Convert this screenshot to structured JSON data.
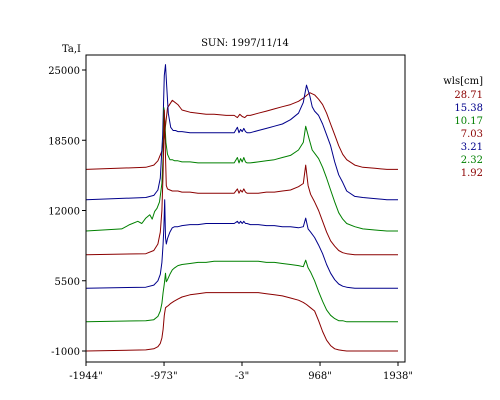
{
  "chart_data": {
    "type": "line",
    "title": "SUN: 1997/11/14",
    "ylabel": "Ta,I",
    "xlabel": "",
    "xlim": [
      -1944,
      1938
    ],
    "ylim": [
      -1000,
      29000
    ],
    "x_ticks": [
      {
        "value": -1944,
        "label": "-1944\""
      },
      {
        "value": -973,
        "label": "-973\""
      },
      {
        "value": -3,
        "label": "-3\""
      },
      {
        "value": 968,
        "label": "968\""
      },
      {
        "value": 1938,
        "label": "1938\""
      }
    ],
    "y_ticks": [
      {
        "value": 25000,
        "label": "25000"
      },
      {
        "value": 18500,
        "label": "18500"
      },
      {
        "value": 12000,
        "label": "12000"
      },
      {
        "value": 5500,
        "label": "5500"
      },
      {
        "value": -1000,
        "label": "-1000"
      }
    ],
    "legend_title": "wls[cm]",
    "legend_position": "right",
    "grid": false,
    "series": [
      {
        "name": "28.71",
        "color": "#8b0000",
        "x": [
          -1944,
          -1200,
          -1100,
          -1050,
          -1000,
          -960,
          -930,
          -870,
          -800,
          -750,
          -650,
          -550,
          -450,
          -350,
          -200,
          -100,
          -60,
          -30,
          0,
          30,
          60,
          100,
          200,
          300,
          400,
          500,
          600,
          700,
          760,
          840,
          900,
          950,
          1000,
          1050,
          1100,
          1150,
          1200,
          1250,
          1300,
          1400,
          1500,
          1650,
          1800,
          1938
        ],
        "y": [
          15800,
          16000,
          16200,
          16600,
          17500,
          19500,
          21500,
          22200,
          21800,
          21300,
          21100,
          21000,
          20900,
          20900,
          20800,
          20800,
          20600,
          20900,
          20700,
          20600,
          20800,
          20800,
          21000,
          21200,
          21400,
          21600,
          21800,
          22100,
          22400,
          22900,
          22700,
          22300,
          21800,
          21000,
          20000,
          19000,
          18000,
          17200,
          16700,
          16200,
          16000,
          15900,
          15800,
          15800
        ]
      },
      {
        "name": "15.38",
        "color": "#00008b",
        "x": [
          -1944,
          -1200,
          -1100,
          -1050,
          -1020,
          -990,
          -970,
          -955,
          -940,
          -920,
          -890,
          -860,
          -830,
          -800,
          -750,
          -650,
          -550,
          -450,
          -350,
          -200,
          -100,
          -60,
          -40,
          -20,
          0,
          20,
          40,
          60,
          100,
          200,
          300,
          400,
          500,
          600,
          700,
          760,
          800,
          840,
          870,
          900,
          950,
          1000,
          1050,
          1100,
          1150,
          1200,
          1250,
          1300,
          1400,
          1500,
          1650,
          1800,
          1938
        ],
        "y": [
          13000,
          13200,
          13400,
          13900,
          15000,
          19000,
          24500,
          25500,
          23500,
          21000,
          19700,
          19400,
          19400,
          19300,
          19300,
          19200,
          19200,
          19200,
          19200,
          19200,
          19200,
          19700,
          19200,
          19500,
          19300,
          19600,
          19300,
          19200,
          19200,
          19400,
          19600,
          19800,
          20000,
          20400,
          21000,
          22000,
          23600,
          22600,
          21600,
          21200,
          20800,
          20000,
          19000,
          18000,
          16500,
          15300,
          14600,
          13800,
          13300,
          13200,
          13100,
          13000,
          13000
        ]
      },
      {
        "name": "10.17",
        "color": "#008000",
        "x": [
          -1944,
          -1500,
          -1400,
          -1300,
          -1250,
          -1200,
          -1150,
          -1120,
          -1090,
          -1060,
          -1030,
          -1000,
          -985,
          -975,
          -965,
          -950,
          -930,
          -900,
          -870,
          -840,
          -800,
          -750,
          -650,
          -550,
          -450,
          -350,
          -200,
          -100,
          -60,
          -40,
          -20,
          0,
          20,
          40,
          60,
          100,
          200,
          300,
          400,
          500,
          600,
          700,
          760,
          790,
          830,
          870,
          900,
          950,
          1000,
          1050,
          1100,
          1150,
          1200,
          1250,
          1300,
          1400,
          1500,
          1650,
          1800,
          1938
        ],
        "y": [
          10100,
          10300,
          10700,
          11000,
          10800,
          11300,
          11600,
          11200,
          11900,
          12200,
          12800,
          14500,
          17000,
          21500,
          20500,
          18300,
          17200,
          16700,
          16700,
          16600,
          16600,
          16500,
          16500,
          16400,
          16400,
          16400,
          16400,
          16400,
          16900,
          16400,
          16800,
          16500,
          16900,
          16500,
          16400,
          16400,
          16500,
          16600,
          16700,
          16900,
          17100,
          17600,
          18300,
          19800,
          18700,
          17600,
          17300,
          16800,
          16000,
          15000,
          13900,
          12800,
          11800,
          11200,
          10800,
          10500,
          10300,
          10200,
          10100,
          10100
        ]
      },
      {
        "name": "7.03",
        "color": "#8b0000",
        "x": [
          -1944,
          -1200,
          -1100,
          -1050,
          -1020,
          -1000,
          -985,
          -970,
          -955,
          -945,
          -930,
          -900,
          -870,
          -840,
          -800,
          -750,
          -650,
          -550,
          -450,
          -350,
          -200,
          -100,
          -60,
          -40,
          -20,
          0,
          20,
          40,
          60,
          100,
          200,
          300,
          400,
          500,
          600,
          700,
          760,
          790,
          820,
          850,
          900,
          950,
          1000,
          1050,
          1100,
          1150,
          1200,
          1250,
          1300,
          1400,
          1500,
          1650,
          1800,
          1938
        ],
        "y": [
          7900,
          8000,
          8300,
          8900,
          10000,
          12000,
          15500,
          21300,
          17000,
          14300,
          14000,
          13900,
          13800,
          13800,
          13800,
          13700,
          13700,
          13600,
          13600,
          13600,
          13600,
          13600,
          14000,
          13600,
          13900,
          13700,
          14000,
          13700,
          13600,
          13600,
          13600,
          13700,
          13700,
          13800,
          13900,
          14200,
          14500,
          16200,
          14300,
          13500,
          12800,
          12000,
          11000,
          10000,
          9200,
          8700,
          8300,
          8100,
          8000,
          7900,
          7900,
          7900,
          7900,
          7900
        ]
      },
      {
        "name": "3.21",
        "color": "#00008b",
        "x": [
          -1944,
          -1200,
          -1100,
          -1050,
          -1020,
          -1000,
          -985,
          -975,
          -965,
          -955,
          -945,
          -930,
          -900,
          -870,
          -840,
          -800,
          -750,
          -650,
          -550,
          -450,
          -350,
          -200,
          -100,
          -60,
          -40,
          -20,
          0,
          20,
          40,
          60,
          100,
          200,
          300,
          400,
          500,
          600,
          700,
          760,
          790,
          820,
          850,
          900,
          950,
          1000,
          1050,
          1100,
          1150,
          1200,
          1250,
          1300,
          1400,
          1500,
          1650,
          1800,
          1938
        ],
        "y": [
          4800,
          4900,
          5100,
          5500,
          6100,
          7200,
          8900,
          10500,
          13000,
          9500,
          8900,
          9400,
          10000,
          10400,
          10500,
          10500,
          10600,
          10700,
          10700,
          10800,
          10800,
          10800,
          10800,
          11000,
          10800,
          11000,
          10800,
          11000,
          10800,
          10800,
          10700,
          10700,
          10600,
          10600,
          10500,
          10500,
          10400,
          10500,
          11300,
          10300,
          10000,
          9500,
          8800,
          8000,
          7000,
          6200,
          5600,
          5200,
          5000,
          4900,
          4800,
          4800,
          4800,
          4800,
          4800
        ]
      },
      {
        "name": "2.32",
        "color": "#008000",
        "x": [
          -1944,
          -1200,
          -1100,
          -1050,
          -1020,
          -1000,
          -985,
          -970,
          -955,
          -945,
          -930,
          -900,
          -870,
          -840,
          -800,
          -750,
          -650,
          -550,
          -450,
          -350,
          -200,
          -100,
          0,
          100,
          200,
          300,
          400,
          500,
          600,
          700,
          760,
          790,
          820,
          850,
          900,
          950,
          1000,
          1050,
          1100,
          1150,
          1200,
          1250,
          1300,
          1400,
          1500,
          1650,
          1800,
          1938
        ],
        "y": [
          1700,
          1800,
          1900,
          2200,
          2700,
          3400,
          4400,
          5200,
          6200,
          5400,
          5600,
          6100,
          6500,
          6700,
          6900,
          7000,
          7100,
          7200,
          7200,
          7300,
          7300,
          7300,
          7300,
          7300,
          7300,
          7200,
          7200,
          7100,
          7000,
          6900,
          6800,
          7400,
          6700,
          6300,
          5500,
          4500,
          3600,
          2800,
          2300,
          2000,
          1800,
          1800,
          1700,
          1700,
          1700,
          1700,
          1700,
          1700
        ]
      },
      {
        "name": "1.92",
        "color": "#8b0000",
        "x": [
          -1944,
          -1200,
          -1100,
          -1050,
          -1020,
          -1000,
          -985,
          -970,
          -955,
          -940,
          -920,
          -890,
          -850,
          -800,
          -750,
          -650,
          -550,
          -450,
          -350,
          -200,
          -100,
          0,
          100,
          200,
          300,
          400,
          500,
          600,
          700,
          760,
          800,
          850,
          900,
          950,
          1000,
          1050,
          1100,
          1150,
          1200,
          1250,
          1300,
          1400,
          1500,
          1650,
          1800,
          1938
        ],
        "y": [
          -1000,
          -900,
          -800,
          -600,
          -300,
          200,
          1000,
          2300,
          3000,
          3100,
          3200,
          3400,
          3600,
          3800,
          4000,
          4200,
          4300,
          4400,
          4400,
          4400,
          4400,
          4400,
          4400,
          4400,
          4300,
          4200,
          4100,
          3900,
          3700,
          3500,
          3300,
          3000,
          2700,
          1800,
          800,
          0,
          -500,
          -800,
          -900,
          -950,
          -1000,
          -1000,
          -1000,
          -1000,
          -1000,
          -1000
        ]
      }
    ]
  }
}
